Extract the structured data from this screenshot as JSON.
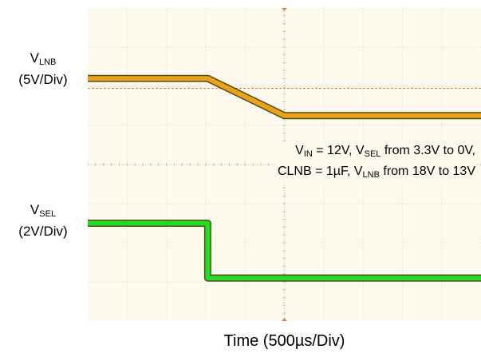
{
  "chart_data": {
    "type": "line",
    "title": "",
    "xlabel": "Time (500µs/Div)",
    "x_divisions": 10,
    "y_divisions": 8,
    "grid": true,
    "annotation": {
      "line1": [
        "V",
        "IN",
        " = 12V, V",
        "SEL",
        " from 3.3V to 0V,"
      ],
      "line2": [
        "CLNB = 1µF, V",
        "LNB",
        " from 18V to 13V"
      ]
    },
    "series": [
      {
        "name": "VLNB",
        "label_main": "V",
        "label_sub": "LNB",
        "scale": "(5V/Div)",
        "color": "#e8a317",
        "points_div": [
          [
            0,
            6.2
          ],
          [
            3.05,
            6.2
          ],
          [
            5.0,
            5.25
          ],
          [
            10,
            5.25
          ]
        ],
        "reference_level_div": 5.95,
        "reference_color": "#e8713a"
      },
      {
        "name": "VSEL",
        "label_main": "V",
        "label_sub": "SEL",
        "scale": "(2V/Div)",
        "color": "#22dd22",
        "points_div": [
          [
            0,
            2.5
          ],
          [
            3.05,
            2.5
          ],
          [
            3.05,
            1.1
          ],
          [
            10,
            1.1
          ]
        ]
      }
    ]
  }
}
